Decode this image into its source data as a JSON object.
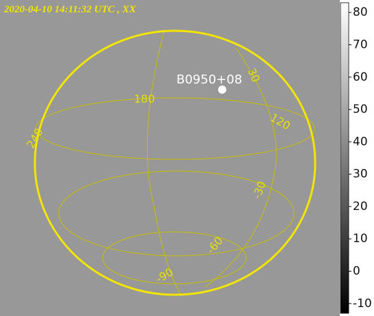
{
  "title": "2020-04-10 14:11:32 UTC , XX",
  "source_label": "B0950+08",
  "grid_labels": [
    "30",
    "180",
    "120",
    "240",
    "-30",
    "-60",
    "-90"
  ],
  "colorbar": {
    "lim": [
      -13,
      83
    ],
    "ticks": [
      80,
      70,
      60,
      50,
      40,
      30,
      20,
      10,
      0,
      -10
    ]
  }
}
